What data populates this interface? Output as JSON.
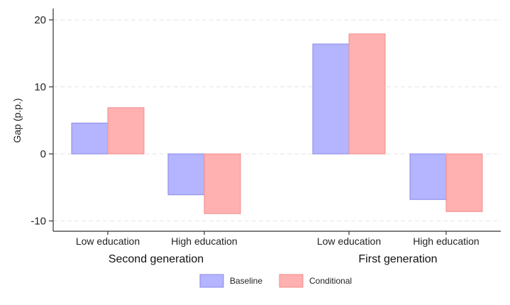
{
  "chart_data": {
    "type": "bar",
    "ylabel": "Gap (p.p.)",
    "ylim": [
      -11.5,
      22
    ],
    "yticks": [
      -10,
      0,
      10,
      20
    ],
    "grid": true,
    "legend_position": "bottom-center",
    "groups": [
      {
        "label": "Second generation",
        "categories": [
          {
            "label": "Low education",
            "values": [
              4.6,
              6.9
            ]
          },
          {
            "label": "High education",
            "values": [
              -6.1,
              -8.9
            ]
          }
        ]
      },
      {
        "label": "First generation",
        "categories": [
          {
            "label": "Low education",
            "values": [
              16.4,
              17.9
            ]
          },
          {
            "label": "High education",
            "values": [
              -6.8,
              -8.6
            ]
          }
        ]
      }
    ],
    "series": [
      {
        "name": "Baseline",
        "color": "#b4b4ff",
        "stroke": "#8a8ae8"
      },
      {
        "name": "Conditional",
        "color": "#ffb0b0",
        "stroke": "#f08c8c"
      }
    ]
  }
}
